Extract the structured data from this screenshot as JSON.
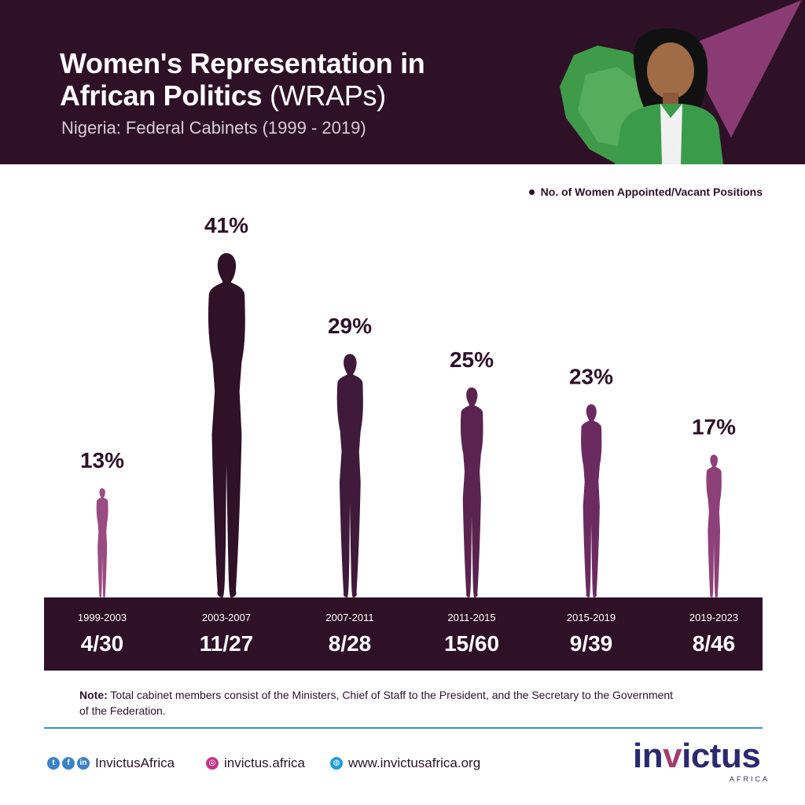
{
  "header": {
    "title_line1": "Women's Representation in",
    "title_line2": "African Politics",
    "title_suffix": "(WRAPs)",
    "subtitle": "Nigeria: Federal Cabinets (1999 - 2019)"
  },
  "legend": {
    "label": "No. of Women Appointed/Vacant Positions"
  },
  "chart_data": {
    "type": "bar",
    "title": "Women's Representation in African Politics (WRAPs)",
    "subtitle": "Nigeria: Federal Cabinets (1999 - 2019)",
    "categories": [
      "1999-2003",
      "2003-2007",
      "2007-2011",
      "2011-2015",
      "2015-2019",
      "2019-2023"
    ],
    "values": [
      13,
      41,
      29,
      25,
      23,
      17
    ],
    "value_labels": [
      "13%",
      "41%",
      "29%",
      "25%",
      "23%",
      "17%"
    ],
    "ratios": [
      "4/30",
      "11/27",
      "8/28",
      "15/60",
      "9/39",
      "8/46"
    ],
    "series": [
      {
        "name": "No. of Women Appointed/Vacant Positions",
        "values": [
          13,
          41,
          29,
          25,
          23,
          17
        ]
      }
    ],
    "colors": [
      "#9a4b82",
      "#2f1128",
      "#3f1a3a",
      "#5a2350",
      "#6b2b60",
      "#8e4079"
    ],
    "legend_position": "top-right",
    "grid": false,
    "ylim": [
      0,
      41
    ]
  },
  "note": {
    "label": "Note:",
    "text": "Total cabinet members consist of the Ministers, Chief of Staff to the President, and the Secretary to the Government of the Federation."
  },
  "footer": {
    "social_handle": "InvictusAfrica",
    "instagram": "invictus.africa",
    "website": "www.invictusafrica.org",
    "icons": [
      "twitter-icon",
      "facebook-icon",
      "linkedin-icon",
      "instagram-icon",
      "globe-icon"
    ]
  },
  "logo": {
    "word_start": "in",
    "word_v": "v",
    "word_end": "ictus",
    "sub": "AFRICA"
  },
  "colors": {
    "header_bg": "#2e1127",
    "band_bg": "#2e1127",
    "rule": "#3f8ed4",
    "logo_blue": "#2b2a6e",
    "logo_accent": "#a0406f"
  }
}
